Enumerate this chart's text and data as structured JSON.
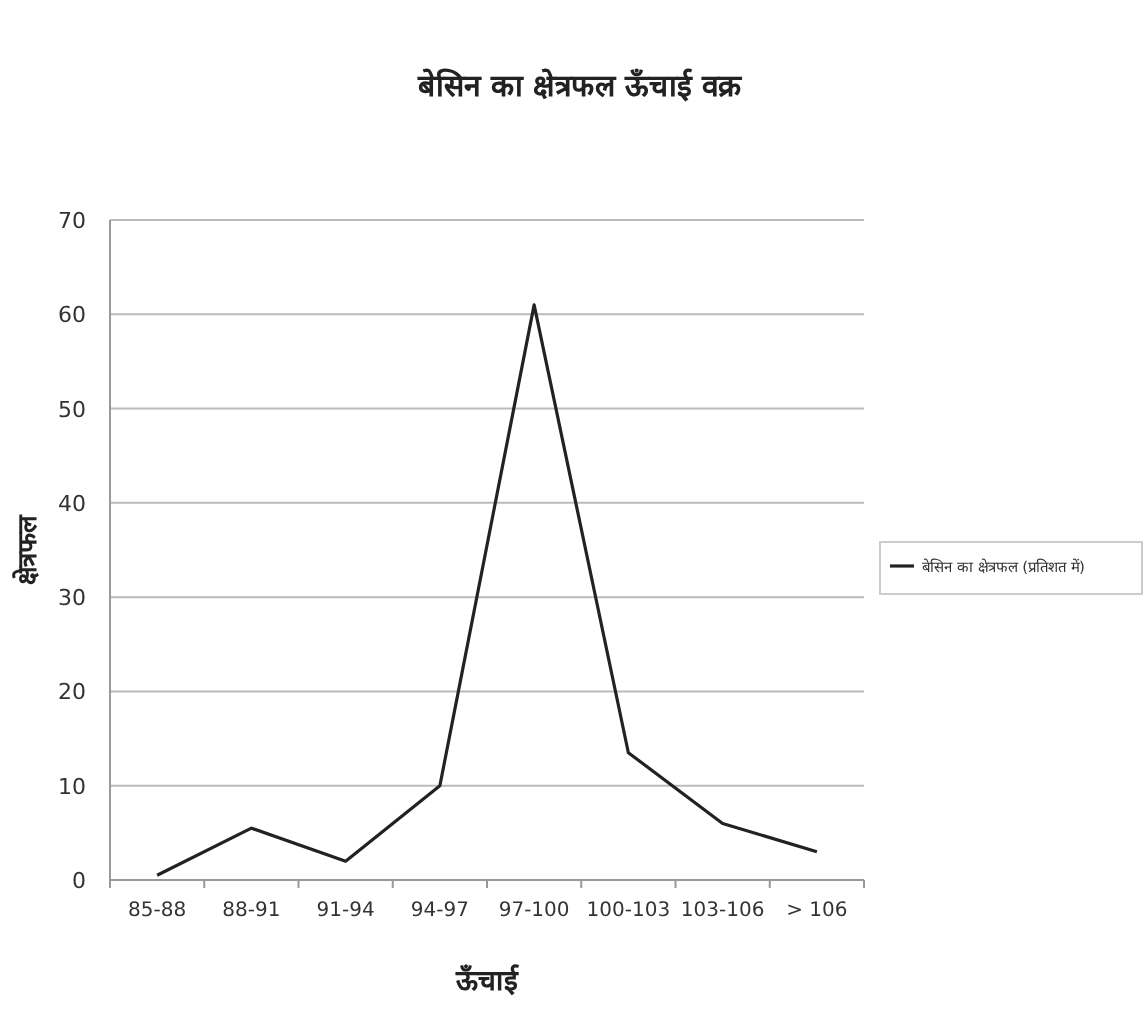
{
  "chart_data": {
    "type": "line",
    "title": "बेसिन का क्षेत्रफल ऊँचाई वक्र",
    "xlabel": "ऊँचाई",
    "ylabel": "क्षेत्रफल",
    "categories": [
      "85-88",
      "88-91",
      "91-94",
      "94-97",
      "97-100",
      "100-103",
      "103-106",
      "> 106"
    ],
    "series": [
      {
        "name": "बेसिन का क्षेत्रफल (प्रतिशत में)",
        "color": "#222222",
        "values": [
          0.5,
          5.5,
          2,
          10,
          61,
          13.5,
          6,
          3
        ]
      }
    ],
    "ylim": [
      0,
      70
    ],
    "yticks": [
      0,
      10,
      20,
      30,
      40,
      50,
      60,
      70
    ],
    "grid": "y",
    "legend": "right",
    "marker": "none",
    "line_style": "solid"
  }
}
